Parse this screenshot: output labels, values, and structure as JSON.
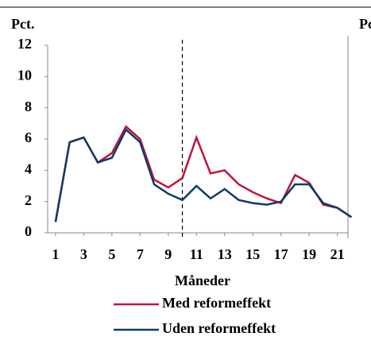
{
  "chart_data": {
    "type": "line",
    "y_label": "Pct.",
    "y2_label": "Pct.",
    "x_label": "Måneder",
    "x": [
      1,
      2,
      3,
      4,
      5,
      6,
      7,
      8,
      9,
      10,
      11,
      12,
      13,
      14,
      15,
      16,
      17,
      18,
      19,
      20,
      21,
      22
    ],
    "series": [
      {
        "name": "Med reformeffekt",
        "color": "#c0143c",
        "values": [
          0.7,
          5.8,
          6.1,
          4.5,
          5.1,
          6.8,
          6.0,
          3.4,
          2.9,
          3.5,
          6.1,
          3.8,
          4.0,
          3.1,
          2.6,
          2.2,
          1.9,
          3.7,
          3.2,
          1.8,
          1.6,
          1.0
        ]
      },
      {
        "name": "Uden reformeffekt",
        "color": "#0d3b66",
        "values": [
          0.7,
          5.8,
          6.1,
          4.5,
          4.8,
          6.6,
          5.8,
          3.1,
          2.5,
          2.1,
          3.0,
          2.2,
          2.8,
          2.1,
          1.9,
          1.8,
          2.0,
          3.1,
          3.1,
          1.9,
          1.6,
          1.0
        ]
      }
    ],
    "xlim": [
      0.44,
      22.6
    ],
    "xticks": [
      1,
      3,
      5,
      7,
      9,
      11,
      13,
      15,
      17,
      19,
      21
    ],
    "ylim": [
      0,
      12
    ],
    "yticks": [
      0,
      2,
      4,
      6,
      8,
      10,
      12
    ],
    "marker_x": 10
  }
}
